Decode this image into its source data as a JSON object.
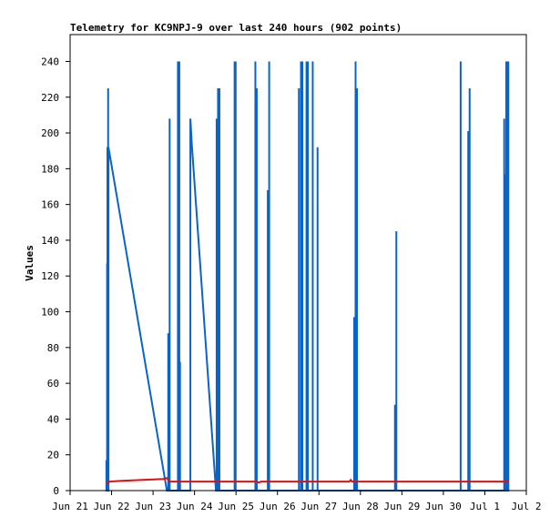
{
  "chart_data": {
    "type": "line",
    "title": "Telemetry for KC9NPJ-9 over last 240 hours (902 points)",
    "xlabel": "",
    "ylabel": "Values",
    "ylim": [
      0,
      255
    ],
    "xlim": [
      "Jun 21 00:00",
      "Jul 2 00:00"
    ],
    "grid": false,
    "y_ticks": [
      0,
      20,
      40,
      60,
      80,
      100,
      120,
      140,
      160,
      180,
      200,
      220,
      240
    ],
    "x_ticks": [
      "Jun 21",
      "Jun 22",
      "Jun 23",
      "Jun 24",
      "Jun 25",
      "Jun 26",
      "Jun 27",
      "Jun 28",
      "Jun 29",
      "Jun 30",
      "Jul 1",
      "Jul 2"
    ],
    "series": [
      {
        "color": "#0a64c8",
        "points": [
          [
            "Jun 21 21:00",
            0
          ],
          [
            "Jun 21 21:00",
            17
          ],
          [
            "Jun 21 21:00",
            0
          ],
          [
            "Jun 21 21:24",
            0
          ],
          [
            "Jun 21 21:24",
            127
          ],
          [
            "Jun 21 21:24",
            0
          ],
          [
            "Jun 21 21:36",
            0
          ],
          [
            "Jun 21 21:36",
            192
          ],
          [
            "Jun 21 21:36",
            0
          ],
          [
            "Jun 21 21:48",
            0
          ],
          [
            "Jun 21 21:48",
            176
          ],
          [
            "Jun 21 21:48",
            0
          ],
          [
            "Jun 21 22:00",
            0
          ],
          [
            "Jun 21 22:00",
            225
          ],
          [
            "Jun 21 22:00",
            0
          ],
          [
            "Jun 21 22:12",
            0
          ],
          [
            "Jun 21 22:12",
            192
          ],
          [
            "Jun 23 08:00",
            0
          ],
          [
            "Jun 23 08:48",
            0
          ],
          [
            "Jun 23 08:48",
            88
          ],
          [
            "Jun 23 08:48",
            0
          ],
          [
            "Jun 23 09:36",
            0
          ],
          [
            "Jun 23 09:36",
            208
          ],
          [
            "Jun 23 09:36",
            0
          ],
          [
            "Jun 23 14:24",
            0
          ],
          [
            "Jun 23 14:24",
            240
          ],
          [
            "Jun 23 14:24",
            0
          ],
          [
            "Jun 23 15:12",
            0
          ],
          [
            "Jun 23 15:12",
            240
          ],
          [
            "Jun 23 15:12",
            0
          ],
          [
            "Jun 23 15:36",
            0
          ],
          [
            "Jun 23 15:36",
            72
          ],
          [
            "Jun 23 15:36",
            0
          ],
          [
            "Jun 23 21:36",
            0
          ],
          [
            "Jun 23 21:36",
            208
          ],
          [
            "Jun 23 22:24",
            194
          ],
          [
            "Jun 24 12:24",
            0
          ],
          [
            "Jun 24 12:48",
            0
          ],
          [
            "Jun 24 12:48",
            208
          ],
          [
            "Jun 24 12:48",
            0
          ],
          [
            "Jun 24 13:36",
            0
          ],
          [
            "Jun 24 13:36",
            225
          ],
          [
            "Jun 24 13:36",
            0
          ],
          [
            "Jun 24 14:24",
            0
          ],
          [
            "Jun 24 14:24",
            225
          ],
          [
            "Jun 24 14:24",
            0
          ],
          [
            "Jun 24 23:12",
            0
          ],
          [
            "Jun 24 23:12",
            240
          ],
          [
            "Jun 24 23:12",
            0
          ],
          [
            "Jun 24 23:48",
            0
          ],
          [
            "Jun 24 23:48",
            240
          ],
          [
            "Jun 24 23:48",
            0
          ],
          [
            "Jun 25 11:12",
            0
          ],
          [
            "Jun 25 11:12",
            240
          ],
          [
            "Jun 25 11:12",
            0
          ],
          [
            "Jun 25 12:00",
            0
          ],
          [
            "Jun 25 12:00",
            225
          ],
          [
            "Jun 25 12:00",
            0
          ],
          [
            "Jun 25 18:24",
            0
          ],
          [
            "Jun 25 18:24",
            168
          ],
          [
            "Jun 25 18:24",
            0
          ],
          [
            "Jun 25 19:12",
            0
          ],
          [
            "Jun 25 19:12",
            240
          ],
          [
            "Jun 25 19:12",
            0
          ],
          [
            "Jun 26 12:24",
            0
          ],
          [
            "Jun 26 12:24",
            225
          ],
          [
            "Jun 26 12:24",
            0
          ],
          [
            "Jun 26 13:36",
            0
          ],
          [
            "Jun 26 13:36",
            240
          ],
          [
            "Jun 26 13:36",
            0
          ],
          [
            "Jun 26 14:24",
            0
          ],
          [
            "Jun 26 14:24",
            240
          ],
          [
            "Jun 26 14:24",
            0
          ],
          [
            "Jun 26 16:48",
            0
          ],
          [
            "Jun 26 16:48",
            240
          ],
          [
            "Jun 26 16:48",
            0
          ],
          [
            "Jun 26 17:36",
            0
          ],
          [
            "Jun 26 17:36",
            240
          ],
          [
            "Jun 26 17:36",
            0
          ],
          [
            "Jun 26 20:24",
            0
          ],
          [
            "Jun 26 20:24",
            240
          ],
          [
            "Jun 26 20:24",
            0
          ],
          [
            "Jun 26 23:12",
            0
          ],
          [
            "Jun 26 23:12",
            192
          ],
          [
            "Jun 26 23:12",
            0
          ],
          [
            "Jun 27 20:24",
            0
          ],
          [
            "Jun 27 20:24",
            97
          ],
          [
            "Jun 27 20:24",
            0
          ],
          [
            "Jun 27 21:12",
            0
          ],
          [
            "Jun 27 21:12",
            240
          ],
          [
            "Jun 27 21:12",
            0
          ],
          [
            "Jun 27 22:00",
            0
          ],
          [
            "Jun 27 22:00",
            225
          ],
          [
            "Jun 27 22:00",
            0
          ],
          [
            "Jun 28 20:00",
            0
          ],
          [
            "Jun 28 20:00",
            48
          ],
          [
            "Jun 28 20:00",
            0
          ],
          [
            "Jun 28 20:48",
            0
          ],
          [
            "Jun 28 20:48",
            145
          ],
          [
            "Jun 28 20:48",
            0
          ],
          [
            "Jun 30 10:00",
            0
          ],
          [
            "Jun 30 10:00",
            240
          ],
          [
            "Jun 30 10:00",
            0
          ],
          [
            "Jun 30 14:24",
            0
          ],
          [
            "Jun 30 14:24",
            201
          ],
          [
            "Jun 30 14:24",
            0
          ],
          [
            "Jun 30 15:12",
            0
          ],
          [
            "Jun 30 15:12",
            225
          ],
          [
            "Jun 30 15:12",
            0
          ],
          [
            "Jul 1 11:12",
            0
          ],
          [
            "Jul 1 11:12",
            208
          ],
          [
            "Jul 1 11:12",
            0
          ],
          [
            "Jul 1 12:00",
            0
          ],
          [
            "Jul 1 12:00",
            177
          ],
          [
            "Jul 1 12:00",
            0
          ],
          [
            "Jul 1 12:24",
            0
          ],
          [
            "Jul 1 12:24",
            240
          ],
          [
            "Jul 1 12:24",
            0
          ],
          [
            "Jul 1 12:48",
            0
          ],
          [
            "Jul 1 12:48",
            240
          ],
          [
            "Jul 1 12:48",
            0
          ],
          [
            "Jul 1 13:36",
            0
          ],
          [
            "Jul 1 13:36",
            240
          ],
          [
            "Jul 1 13:36",
            0
          ],
          [
            "Jul 1 14:00",
            0
          ]
        ]
      },
      {
        "color": "#e01010",
        "points": [
          [
            "Jun 21 21:00",
            4
          ],
          [
            "Jun 21 22:12",
            5
          ],
          [
            "Jun 22 06:00",
            5.5
          ],
          [
            "Jun 22 18:00",
            6
          ],
          [
            "Jun 23 06:00",
            6.5
          ],
          [
            "Jun 23 08:00",
            7
          ],
          [
            "Jun 23 09:36",
            5
          ],
          [
            "Jun 25 12:00",
            5
          ],
          [
            "Jun 25 13:12",
            4.5
          ],
          [
            "Jun 25 14:24",
            5
          ],
          [
            "Jun 27 17:36",
            5
          ],
          [
            "Jun 27 18:24",
            6
          ],
          [
            "Jun 27 19:12",
            5
          ],
          [
            "Jul 1 14:00",
            5
          ]
        ]
      }
    ]
  }
}
